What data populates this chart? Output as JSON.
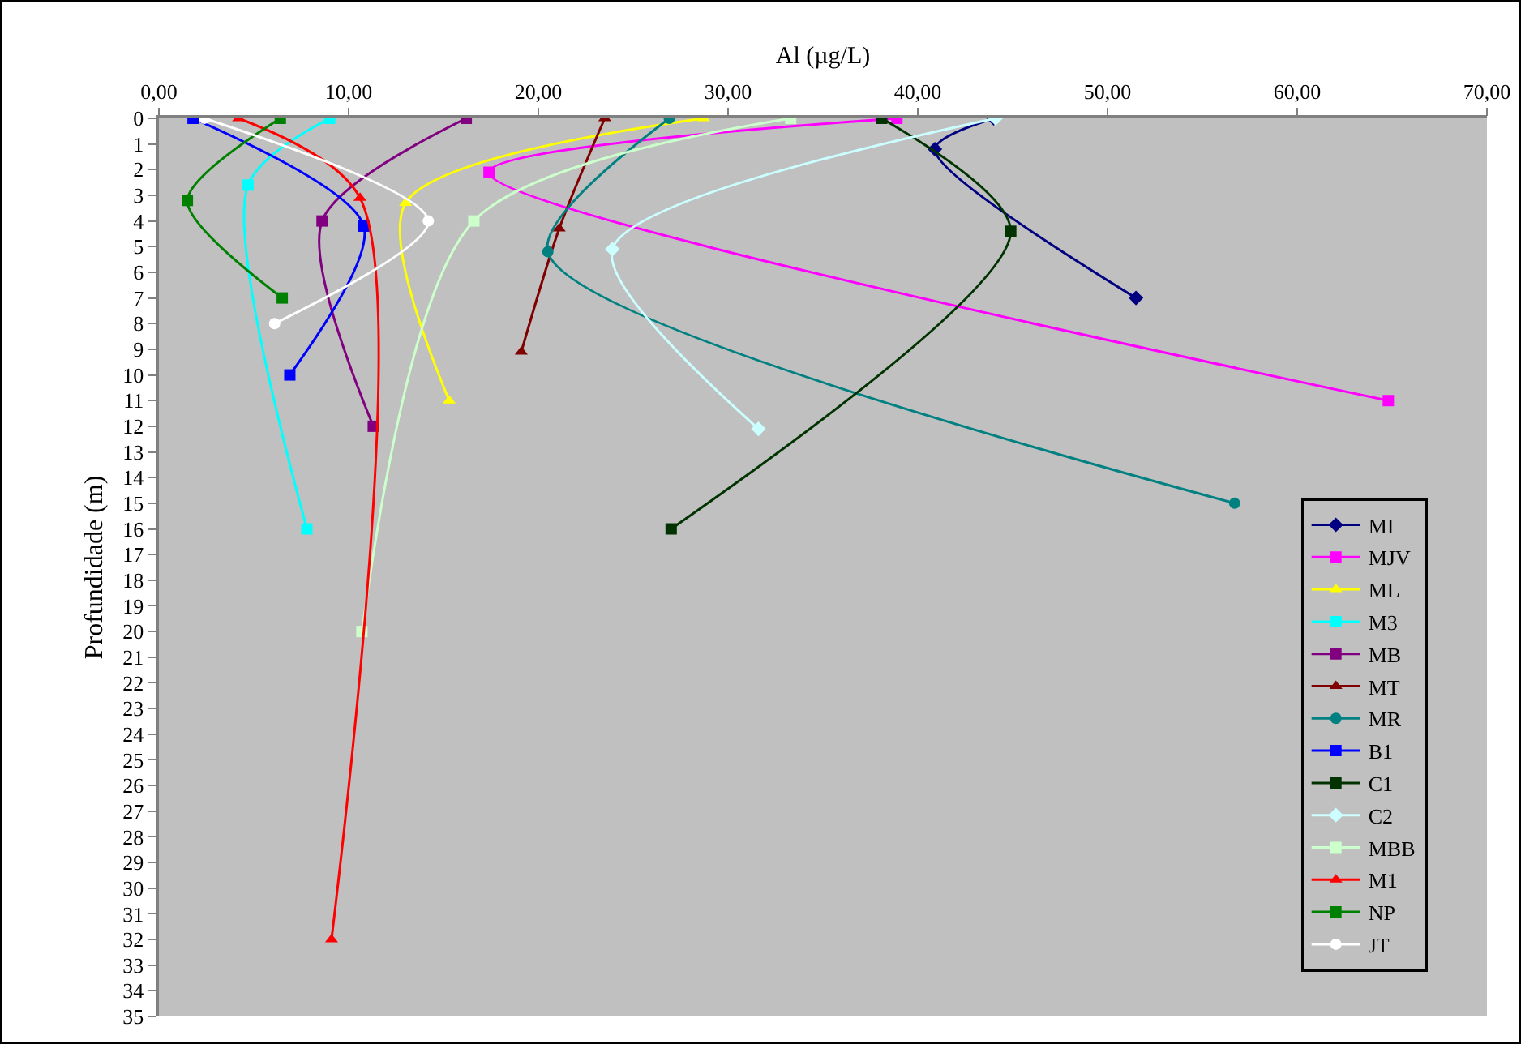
{
  "chart_data": {
    "type": "line",
    "xlabel": "Al (µg/L)",
    "ylabel": "Profundidade (m)",
    "xlim": [
      0,
      70
    ],
    "xticks": [
      {
        "value": 0,
        "label": "0,00"
      },
      {
        "value": 10,
        "label": "10,00"
      },
      {
        "value": 20,
        "label": "20,00"
      },
      {
        "value": 30,
        "label": "30,00"
      },
      {
        "value": 40,
        "label": "40,00"
      },
      {
        "value": 50,
        "label": "50,00"
      },
      {
        "value": 60,
        "label": "60,00"
      },
      {
        "value": 70,
        "label": "70,00"
      }
    ],
    "ylim": [
      35,
      0
    ],
    "yticks": [
      0,
      1,
      2,
      3,
      4,
      5,
      6,
      7,
      8,
      9,
      10,
      11,
      12,
      13,
      14,
      15,
      16,
      17,
      18,
      19,
      20,
      21,
      22,
      23,
      24,
      25,
      26,
      27,
      28,
      29,
      30,
      31,
      32,
      33,
      34,
      35
    ],
    "grid": false,
    "legend": "right",
    "series": [
      {
        "name": "MI",
        "color": "#000080",
        "marker": "diamond",
        "x": [
          44.0,
          40.9,
          51.5
        ],
        "values": [
          0,
          1.2,
          7.0
        ]
      },
      {
        "name": "MJV",
        "color": "#ff00ff",
        "marker": "square",
        "x": [
          38.9,
          17.4,
          64.8
        ],
        "values": [
          0,
          2.1,
          11.0
        ]
      },
      {
        "name": "ML",
        "color": "#ffff00",
        "marker": "triangle",
        "x": [
          28.7,
          13.0,
          15.3
        ],
        "values": [
          0,
          3.3,
          11.0
        ]
      },
      {
        "name": "M3",
        "color": "#00ffff",
        "marker": "square",
        "x": [
          9.0,
          4.7,
          7.8
        ],
        "values": [
          0,
          2.6,
          16.0
        ]
      },
      {
        "name": "MB",
        "color": "#800080",
        "marker": "square",
        "x": [
          16.2,
          8.6,
          11.3
        ],
        "values": [
          0,
          4.0,
          12.0
        ]
      },
      {
        "name": "MT",
        "color": "#800000",
        "marker": "triangle",
        "x": [
          23.5,
          21.1,
          19.1
        ],
        "values": [
          0,
          4.3,
          9.1
        ]
      },
      {
        "name": "MR",
        "color": "#008080",
        "marker": "circle",
        "x": [
          26.9,
          20.5,
          56.7
        ],
        "values": [
          0,
          5.2,
          15.0
        ]
      },
      {
        "name": "B1",
        "color": "#0000ff",
        "marker": "square",
        "x": [
          1.8,
          10.8,
          6.9
        ],
        "values": [
          0,
          4.2,
          10.0
        ]
      },
      {
        "name": "C1",
        "color": "#003300",
        "marker": "square",
        "x": [
          38.1,
          44.9,
          27.0
        ],
        "values": [
          0,
          4.4,
          16.0
        ]
      },
      {
        "name": "C2",
        "color": "#ccffff",
        "marker": "diamond",
        "x": [
          44.1,
          23.9,
          31.6
        ],
        "values": [
          0,
          5.1,
          12.1
        ]
      },
      {
        "name": "MBB",
        "color": "#ccffcc",
        "marker": "square",
        "x": [
          33.3,
          16.6,
          10.7
        ],
        "values": [
          0,
          4.0,
          20.0
        ]
      },
      {
        "name": "M1",
        "color": "#ff0000",
        "marker": "triangle",
        "x": [
          4.2,
          10.6,
          9.1
        ],
        "values": [
          0,
          3.1,
          32.0
        ]
      },
      {
        "name": "NP",
        "color": "#008000",
        "marker": "square",
        "x": [
          6.4,
          1.5,
          6.5
        ],
        "values": [
          0,
          3.2,
          7.0
        ]
      },
      {
        "name": "JT",
        "color": "#ffffff",
        "marker": "circle",
        "x": [
          2.4,
          14.2,
          6.1
        ],
        "values": [
          0,
          4.0,
          8.0
        ]
      }
    ]
  }
}
